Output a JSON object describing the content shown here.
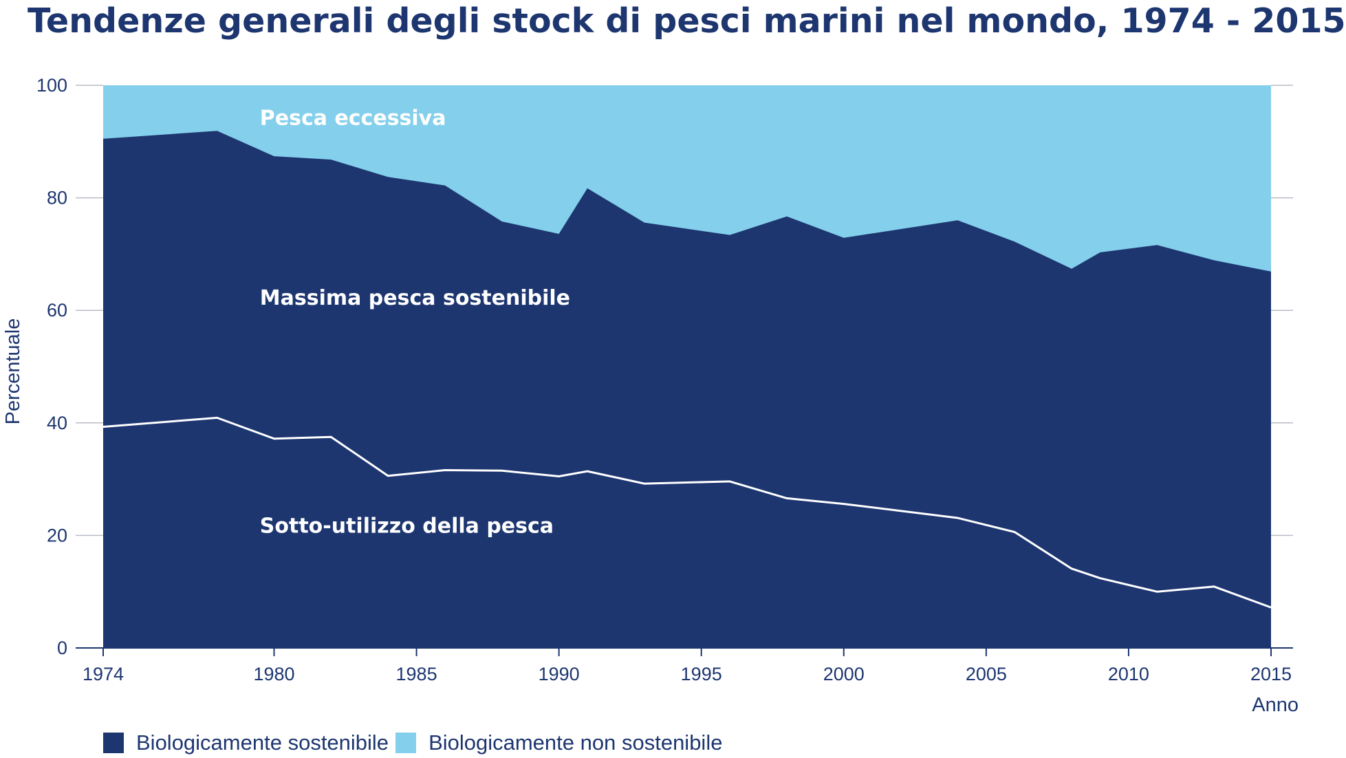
{
  "chart_data": {
    "type": "area",
    "title": "Tendenze generali degli stock di pesci marini nel mondo, 1974 - 2015",
    "xlabel": "Anno",
    "ylabel": "Percentuale",
    "xlim": [
      1974,
      2015
    ],
    "ylim": [
      0,
      100
    ],
    "x_ticks": [
      1974,
      1980,
      1985,
      1990,
      1995,
      2000,
      2005,
      2010,
      2015
    ],
    "y_ticks": [
      0,
      20,
      40,
      60,
      80,
      100
    ],
    "grid": "horizontal",
    "colors": {
      "sustainable": "#1d3670",
      "unsustainable": "#84cfeb",
      "line": "#ffffff",
      "axis": "#1d3670",
      "grid": "#b8bcc6"
    },
    "series": [
      {
        "name": "Biologicamente sostenibile",
        "x": [
          1974,
          1978,
          1980,
          1982,
          1984,
          1986,
          1988,
          1990,
          1991,
          1993,
          1996,
          1998,
          2000,
          2004,
          2006,
          2008,
          2009,
          2011,
          2013,
          2015
        ],
        "values": [
          90.5,
          91.9,
          87.4,
          86.8,
          83.7,
          82.2,
          75.8,
          73.6,
          81.7,
          75.6,
          73.4,
          76.7,
          72.9,
          76.0,
          72.2,
          67.4,
          70.3,
          71.6,
          68.9,
          66.9
        ]
      },
      {
        "name": "Sotto-utilizzo della pesca",
        "x": [
          1974,
          1978,
          1980,
          1982,
          1984,
          1986,
          1988,
          1990,
          1991,
          1993,
          1996,
          1998,
          2000,
          2004,
          2006,
          2008,
          2009,
          2011,
          2013,
          2015
        ],
        "values": [
          39.3,
          40.9,
          37.2,
          37.5,
          30.6,
          31.6,
          31.5,
          30.5,
          31.4,
          29.2,
          29.6,
          26.6,
          25.6,
          23.1,
          20.6,
          14.1,
          12.4,
          10.0,
          10.9,
          7.2
        ]
      }
    ],
    "legend": {
      "placement": "bottom-left",
      "items": [
        {
          "label": "Biologicamente sostenibile",
          "color": "#1d3670"
        },
        {
          "label": "Biologicamente non sostenibile",
          "color": "#84cfeb"
        }
      ]
    },
    "annotations": [
      {
        "text": "Pesca eccessiva",
        "x": 1979.5,
        "y": 93
      },
      {
        "text": "Massima pesca sostenibile",
        "x": 1979.5,
        "y": 61
      },
      {
        "text": "Sotto-utilizzo della pesca",
        "x": 1979.5,
        "y": 20.5
      }
    ]
  }
}
